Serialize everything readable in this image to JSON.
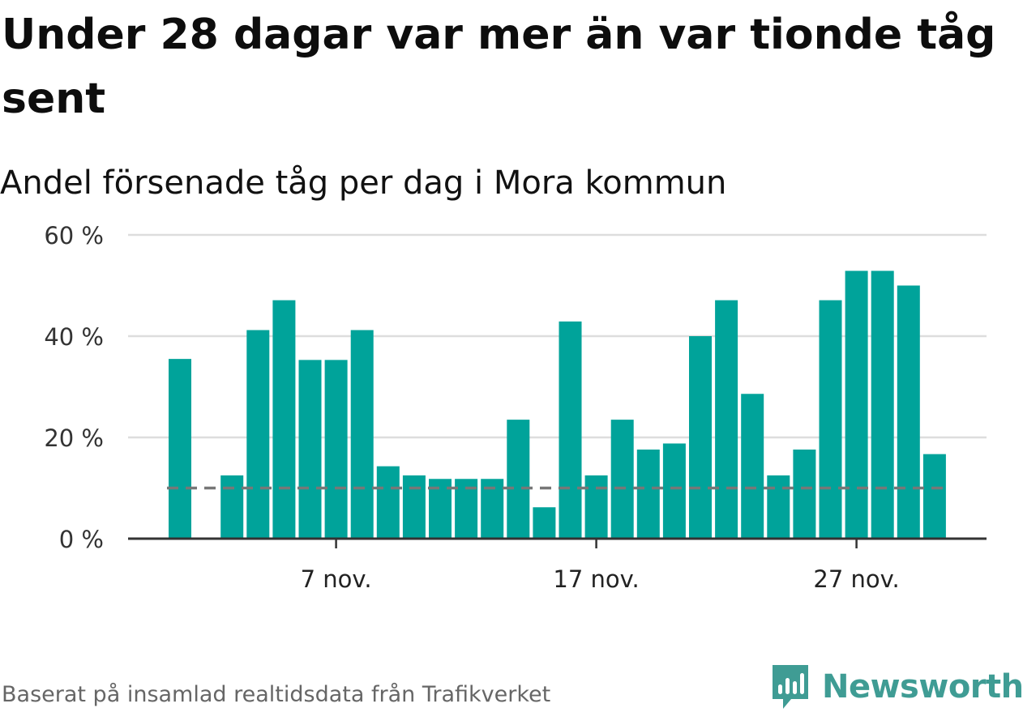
{
  "title": "Under 28 dagar var mer än var tionde tåg sent",
  "subtitle": "Andel försenade tåg per dag i Mora kommun",
  "source": "Baserat på insamlad realtidsdata från Trafikverket",
  "brand": {
    "name": "Newsworthy",
    "icon": "newsworthy-logo-icon",
    "color": "#3f9c94"
  },
  "colors": {
    "bar": "#00a39a",
    "reference_line": "#777777",
    "grid": "#dddddd",
    "axis": "#333333"
  },
  "chart_data": {
    "type": "bar",
    "title": "Andel försenade tåg per dag i Mora kommun",
    "x": [
      "2023-11-01",
      "2023-11-02",
      "2023-11-03",
      "2023-11-04",
      "2023-11-05",
      "2023-11-06",
      "2023-11-07",
      "2023-11-08",
      "2023-11-09",
      "2023-11-10",
      "2023-11-11",
      "2023-11-12",
      "2023-11-13",
      "2023-11-14",
      "2023-11-15",
      "2023-11-16",
      "2023-11-17",
      "2023-11-18",
      "2023-11-19",
      "2023-11-20",
      "2023-11-21",
      "2023-11-22",
      "2023-11-23",
      "2023-11-24",
      "2023-11-25",
      "2023-11-26",
      "2023-11-27",
      "2023-11-28",
      "2023-11-29",
      "2023-11-30"
    ],
    "values": [
      35.5,
      null,
      12.5,
      41.2,
      47.1,
      35.3,
      35.3,
      41.2,
      14.3,
      12.5,
      11.8,
      11.8,
      11.8,
      23.5,
      6.2,
      42.9,
      12.5,
      23.5,
      17.6,
      18.8,
      40.0,
      47.1,
      28.6,
      12.5,
      17.6,
      47.1,
      52.9,
      52.9,
      50.0,
      16.7
    ],
    "reference_line": 10,
    "ylim": [
      0,
      60
    ],
    "yticks": [
      {
        "value": 0,
        "label": "0 %"
      },
      {
        "value": 20,
        "label": "20 %"
      },
      {
        "value": 40,
        "label": "40 %"
      },
      {
        "value": 60,
        "label": "60 %"
      }
    ],
    "xticks": [
      {
        "x": "2023-11-07",
        "label": "7 nov."
      },
      {
        "x": "2023-11-17",
        "label": "17 nov."
      },
      {
        "x": "2023-11-27",
        "label": "27 nov."
      }
    ],
    "grid": true,
    "legend": "none"
  }
}
